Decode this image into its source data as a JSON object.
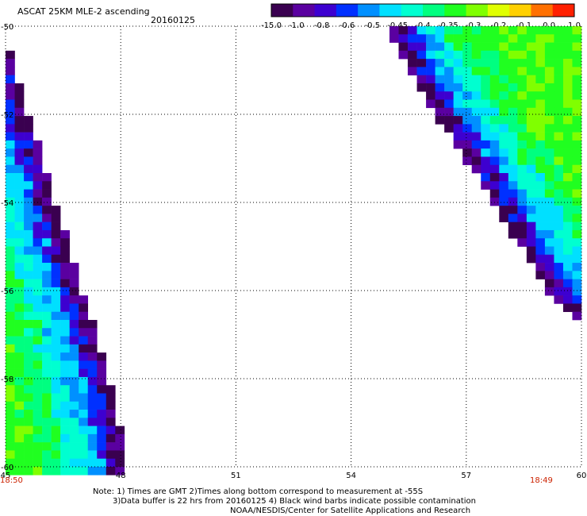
{
  "header": {
    "title": "ASCAT 25KM MLE-2 ascending",
    "date": "20160125"
  },
  "colorbar": {
    "tick_labels": [
      "-15.0",
      "-1.0",
      "-0.8",
      "-0.6",
      "-0.5",
      "-0.45",
      "-0.4",
      "-0.35",
      "-0.3",
      "-0.2",
      "-0.1",
      "0.0",
      "1.0"
    ],
    "colors": [
      "#3a0050",
      "#5a00a0",
      "#3d00d0",
      "#0030ff",
      "#0090ff",
      "#00e0ff",
      "#00ffd0",
      "#00ff80",
      "#20ff20",
      "#80ff00",
      "#e0ff00",
      "#ffd000",
      "#ff7000",
      "#ff2000"
    ]
  },
  "chart_data": {
    "type": "heatmap",
    "x_ticks": [
      "45",
      "48",
      "51",
      "54",
      "57",
      "60"
    ],
    "y_ticks": [
      "-50",
      "-52",
      "-54",
      "-56",
      "-58",
      "-60"
    ],
    "xlim": [
      45,
      60
    ],
    "ylim": [
      -60,
      -50
    ],
    "grid": true,
    "colorscale_ticks": [
      -15.0,
      -1.0,
      -0.8,
      -0.6,
      -0.5,
      -0.45,
      -0.4,
      -0.35,
      -0.3,
      -0.2,
      -0.1,
      0.0,
      1.0
    ],
    "swaths": [
      {
        "edge_lon_at_lat": [
          [
            -50.5,
            45.1
          ],
          [
            -52.0,
            45.6
          ],
          [
            -54.0,
            46.3
          ],
          [
            -56.0,
            47.0
          ],
          [
            -58.0,
            47.7
          ],
          [
            -60.0,
            48.2
          ]
        ],
        "low_value_band_near_edge": true
      },
      {
        "edge_lon_at_lat": [
          [
            -50.0,
            54.9
          ],
          [
            -52.0,
            56.2
          ],
          [
            -54.0,
            57.7
          ],
          [
            -56.0,
            59.1
          ],
          [
            -56.8,
            60.0
          ]
        ],
        "low_value_band_near_edge": true
      }
    ]
  },
  "time_labels": {
    "left": "18:50",
    "right": "18:49"
  },
  "notes": {
    "line1": "Note: 1) Times are GMT 2)Times along bottom correspond to measurement at -55S",
    "line2": "3)Data buffer is 22 hrs from 20160125 4) Black wind barbs indicate possible contamination",
    "line3": "NOAA/NESDIS/Center for Satellite Applications and Research"
  }
}
